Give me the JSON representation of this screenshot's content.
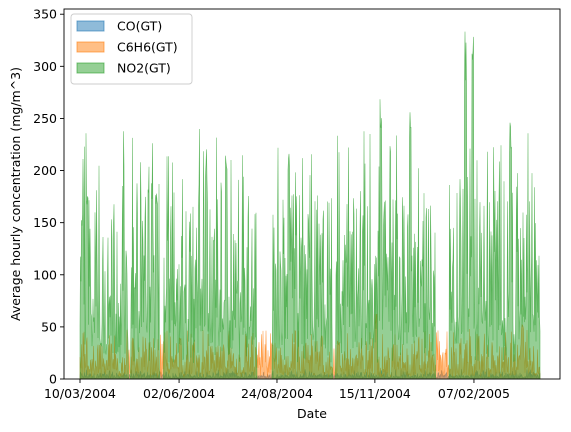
{
  "chart_data": {
    "type": "area",
    "xlabel": "Date",
    "ylabel": "Average hourly concentration (mg/m^3)",
    "x_start": "10/03/2004",
    "x_end": "04/04/2005",
    "x_ticks": [
      "10/03/2004",
      "02/06/2004",
      "24/08/2004",
      "15/11/2004",
      "07/02/2005"
    ],
    "ylim": [
      0,
      355
    ],
    "y_ticks": [
      "0",
      "50",
      "100",
      "150",
      "200",
      "250",
      "300",
      "350"
    ],
    "grid": false,
    "legend_position": "top-left",
    "series": [
      {
        "name": "CO(GT)",
        "color": "#1f77b4",
        "typical": [
          1,
          2,
          3,
          4,
          5,
          6,
          8
        ],
        "max": 12
      },
      {
        "name": "C6H6(GT)",
        "color": "#ff7f0e",
        "typical": [
          5,
          10,
          20,
          30,
          40
        ],
        "max": 63,
        "approx_peaks": [
          {
            "date": "03/06/2004",
            "value": 40
          },
          {
            "date": "20/08/2004",
            "value": 35
          },
          {
            "date": "01/10/2004",
            "value": 44
          },
          {
            "date": "15/10/2004",
            "value": 36
          },
          {
            "date": "16/11/2004",
            "value": 63
          },
          {
            "date": "20/03/2005",
            "value": 55
          }
        ]
      },
      {
        "name": "NO2(GT)",
        "color": "#2ca02c",
        "typical": [
          50,
          100,
          150,
          200
        ],
        "max": 340,
        "approx_peaks": [
          {
            "date": "12/03/2004",
            "value": 172
          },
          {
            "date": "16/03/2004",
            "value": 193
          },
          {
            "date": "14/05/2004",
            "value": 195
          },
          {
            "date": "25/06/2004",
            "value": 222
          },
          {
            "date": "12/07/2004",
            "value": 232
          },
          {
            "date": "03/09/2004",
            "value": 225
          },
          {
            "date": "12/10/2004",
            "value": 258
          },
          {
            "date": "20/11/2004",
            "value": 275
          },
          {
            "date": "15/12/2004",
            "value": 258
          },
          {
            "date": "31/01/2005",
            "value": 335
          },
          {
            "date": "06/02/2005",
            "value": 340
          },
          {
            "date": "10/03/2005",
            "value": 248
          }
        ],
        "gaps": [
          {
            "from": "20/04/2004",
            "to": "22/04/2004"
          },
          {
            "from": "16/05/2004",
            "to": "20/05/2004"
          },
          {
            "from": "07/08/2004",
            "to": "20/08/2004"
          },
          {
            "from": "10/10/2004",
            "to": "13/10/2004"
          },
          {
            "from": "05/01/2005",
            "to": "17/01/2005"
          }
        ]
      }
    ]
  }
}
